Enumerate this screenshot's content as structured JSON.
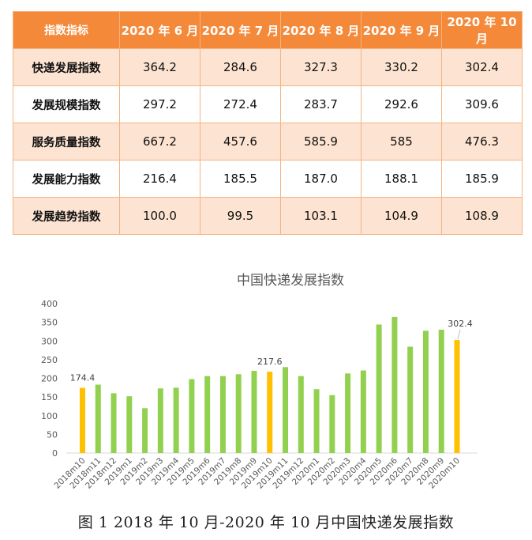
{
  "table": {
    "header": [
      "指数指标",
      "2020 年 6 月",
      "2020 年 7 月",
      "2020 年 8 月",
      "2020 年 9 月",
      "2020 年 10 月"
    ],
    "rows": [
      {
        "name": "快递发展指数",
        "values": [
          "364.2",
          "284.6",
          "327.3",
          "330.2",
          "302.4"
        ]
      },
      {
        "name": "发展规模指数",
        "values": [
          "297.2",
          "272.4",
          "283.7",
          "292.6",
          "309.6"
        ]
      },
      {
        "name": "服务质量指数",
        "values": [
          "667.2",
          "457.6",
          "585.9",
          "585",
          "476.3"
        ]
      },
      {
        "name": "发展能力指数",
        "values": [
          "216.4",
          "185.5",
          "187.0",
          "188.1",
          "185.9"
        ]
      },
      {
        "name": "发展趋势指数",
        "values": [
          "100.0",
          "99.5",
          "103.1",
          "104.9",
          "108.9"
        ]
      }
    ]
  },
  "chart_data": {
    "type": "bar",
    "title": "中国快递发展指数",
    "categories": [
      "2018m10",
      "2018m11",
      "2018m12",
      "2019m1",
      "2019m2",
      "2019m3",
      "2019m4",
      "2019m5",
      "2019m6",
      "2019m7",
      "2019m8",
      "2019m9",
      "2019m10",
      "2019m11",
      "2019m12",
      "2020m1",
      "2020m2",
      "2020m3",
      "2020m4",
      "2020m5",
      "2020m6",
      "2020m7",
      "2020m8",
      "2020m9",
      "2020m10"
    ],
    "values": [
      174.4,
      183,
      160,
      152,
      120,
      173,
      175,
      198,
      206,
      206,
      211,
      220,
      217.6,
      230,
      206,
      171,
      155,
      213,
      221,
      344,
      364.2,
      284.6,
      327.3,
      330.2,
      302.4
    ],
    "highlight_indices": [
      0,
      12,
      24
    ],
    "data_labels": [
      {
        "index": 0,
        "text": "174.4"
      },
      {
        "index": 12,
        "text": "217.6"
      },
      {
        "index": 24,
        "text": "302.4"
      }
    ],
    "yticks": [
      "0",
      "50",
      "100",
      "150",
      "200",
      "250",
      "300",
      "350",
      "400"
    ],
    "ylim": [
      0,
      400
    ],
    "grid": false,
    "legend": "none",
    "colors": {
      "bar": "#92d050",
      "highlight": "#ffc000",
      "axis_text": "#595959",
      "title": "#595959"
    }
  },
  "caption": "图 1   2018 年 10 月-2020 年 10 月中国快递发展指数"
}
